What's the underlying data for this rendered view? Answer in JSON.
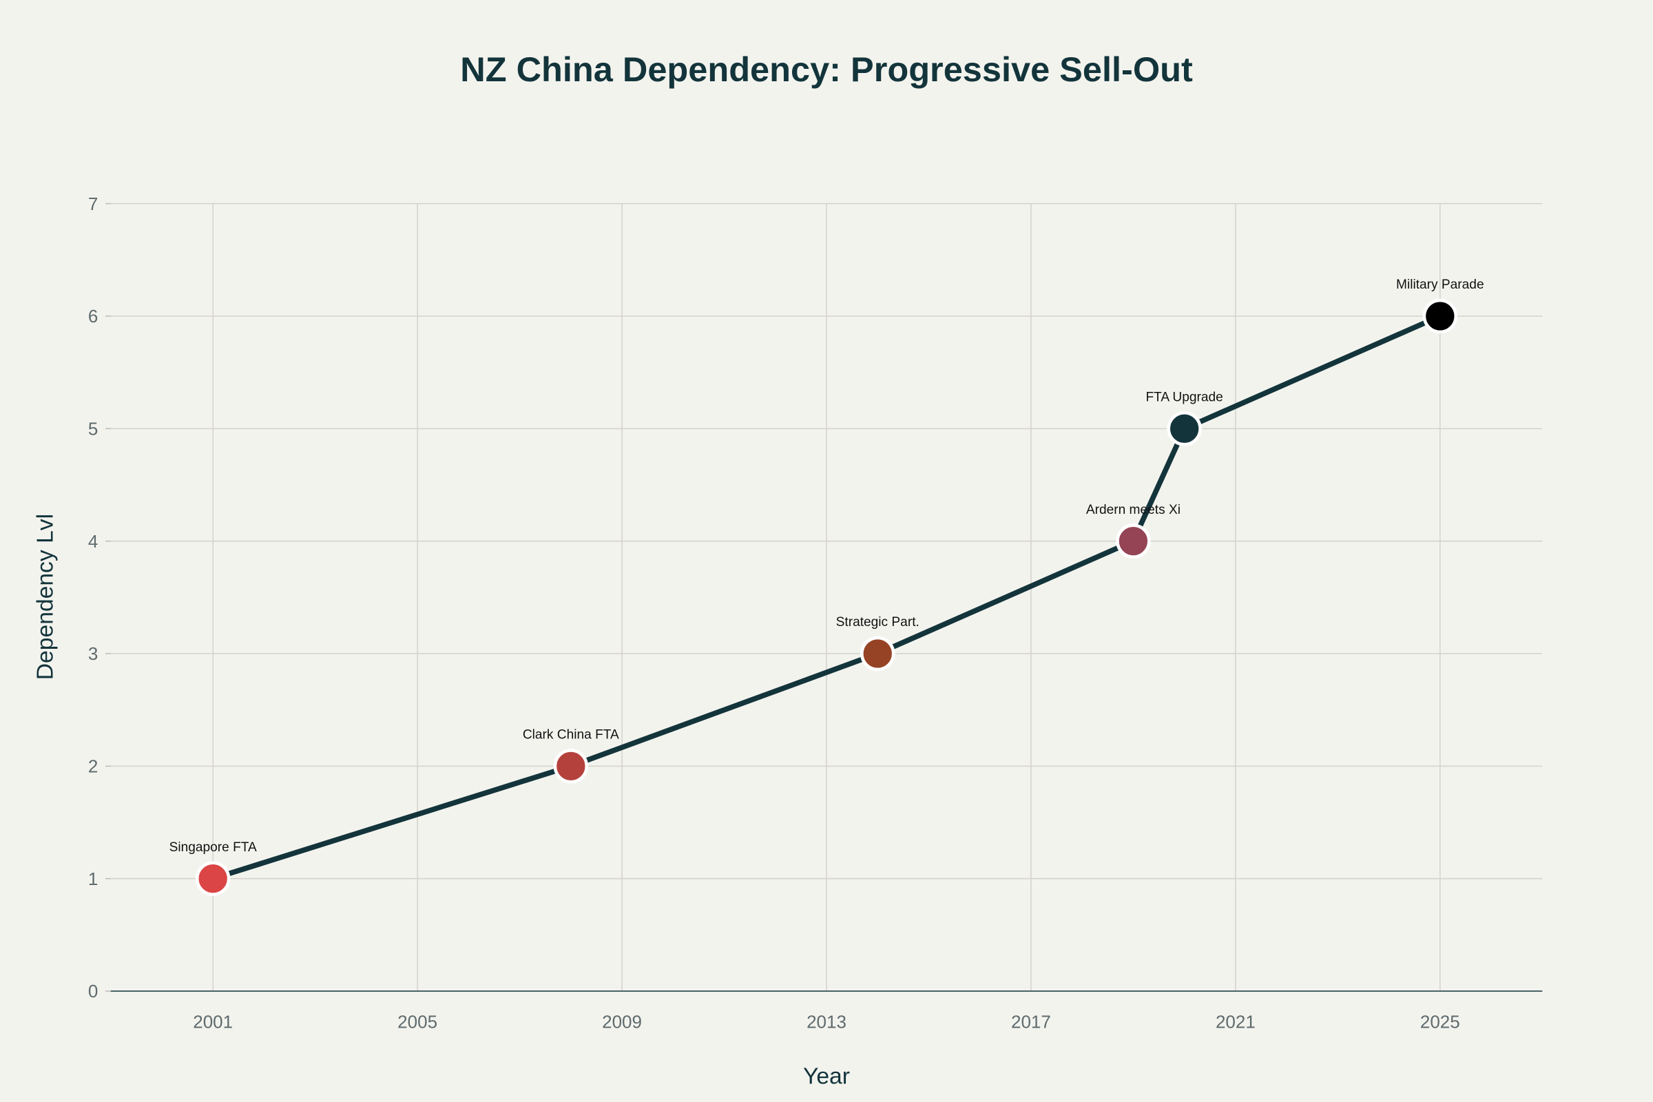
{
  "chart_data": {
    "type": "line",
    "title": "NZ China Dependency: Progressive Sell-Out",
    "xlabel": "Year",
    "ylabel": "Dependency Lvl",
    "xlim": [
      1999,
      2027
    ],
    "ylim": [
      0,
      7
    ],
    "xticks": [
      2001,
      2005,
      2009,
      2013,
      2017,
      2021,
      2025
    ],
    "yticks": [
      0,
      1,
      2,
      3,
      4,
      5,
      6,
      7
    ],
    "grid": true,
    "line_color": "#13343B",
    "points": [
      {
        "x": 2001,
        "y": 1,
        "label": "Singapore FTA",
        "color": "#DB4545"
      },
      {
        "x": 2008,
        "y": 2,
        "label": "Clark China FTA",
        "color": "#B4413C"
      },
      {
        "x": 2014,
        "y": 3,
        "label": "Strategic Part.",
        "color": "#964325"
      },
      {
        "x": 2019,
        "y": 4,
        "label": "Ardern meets Xi",
        "color": "#944454"
      },
      {
        "x": 2020,
        "y": 5,
        "label": "FTA Upgrade",
        "color": "#13343B"
      },
      {
        "x": 2025,
        "y": 6,
        "label": "Military Parade",
        "color": "#000000"
      }
    ]
  }
}
